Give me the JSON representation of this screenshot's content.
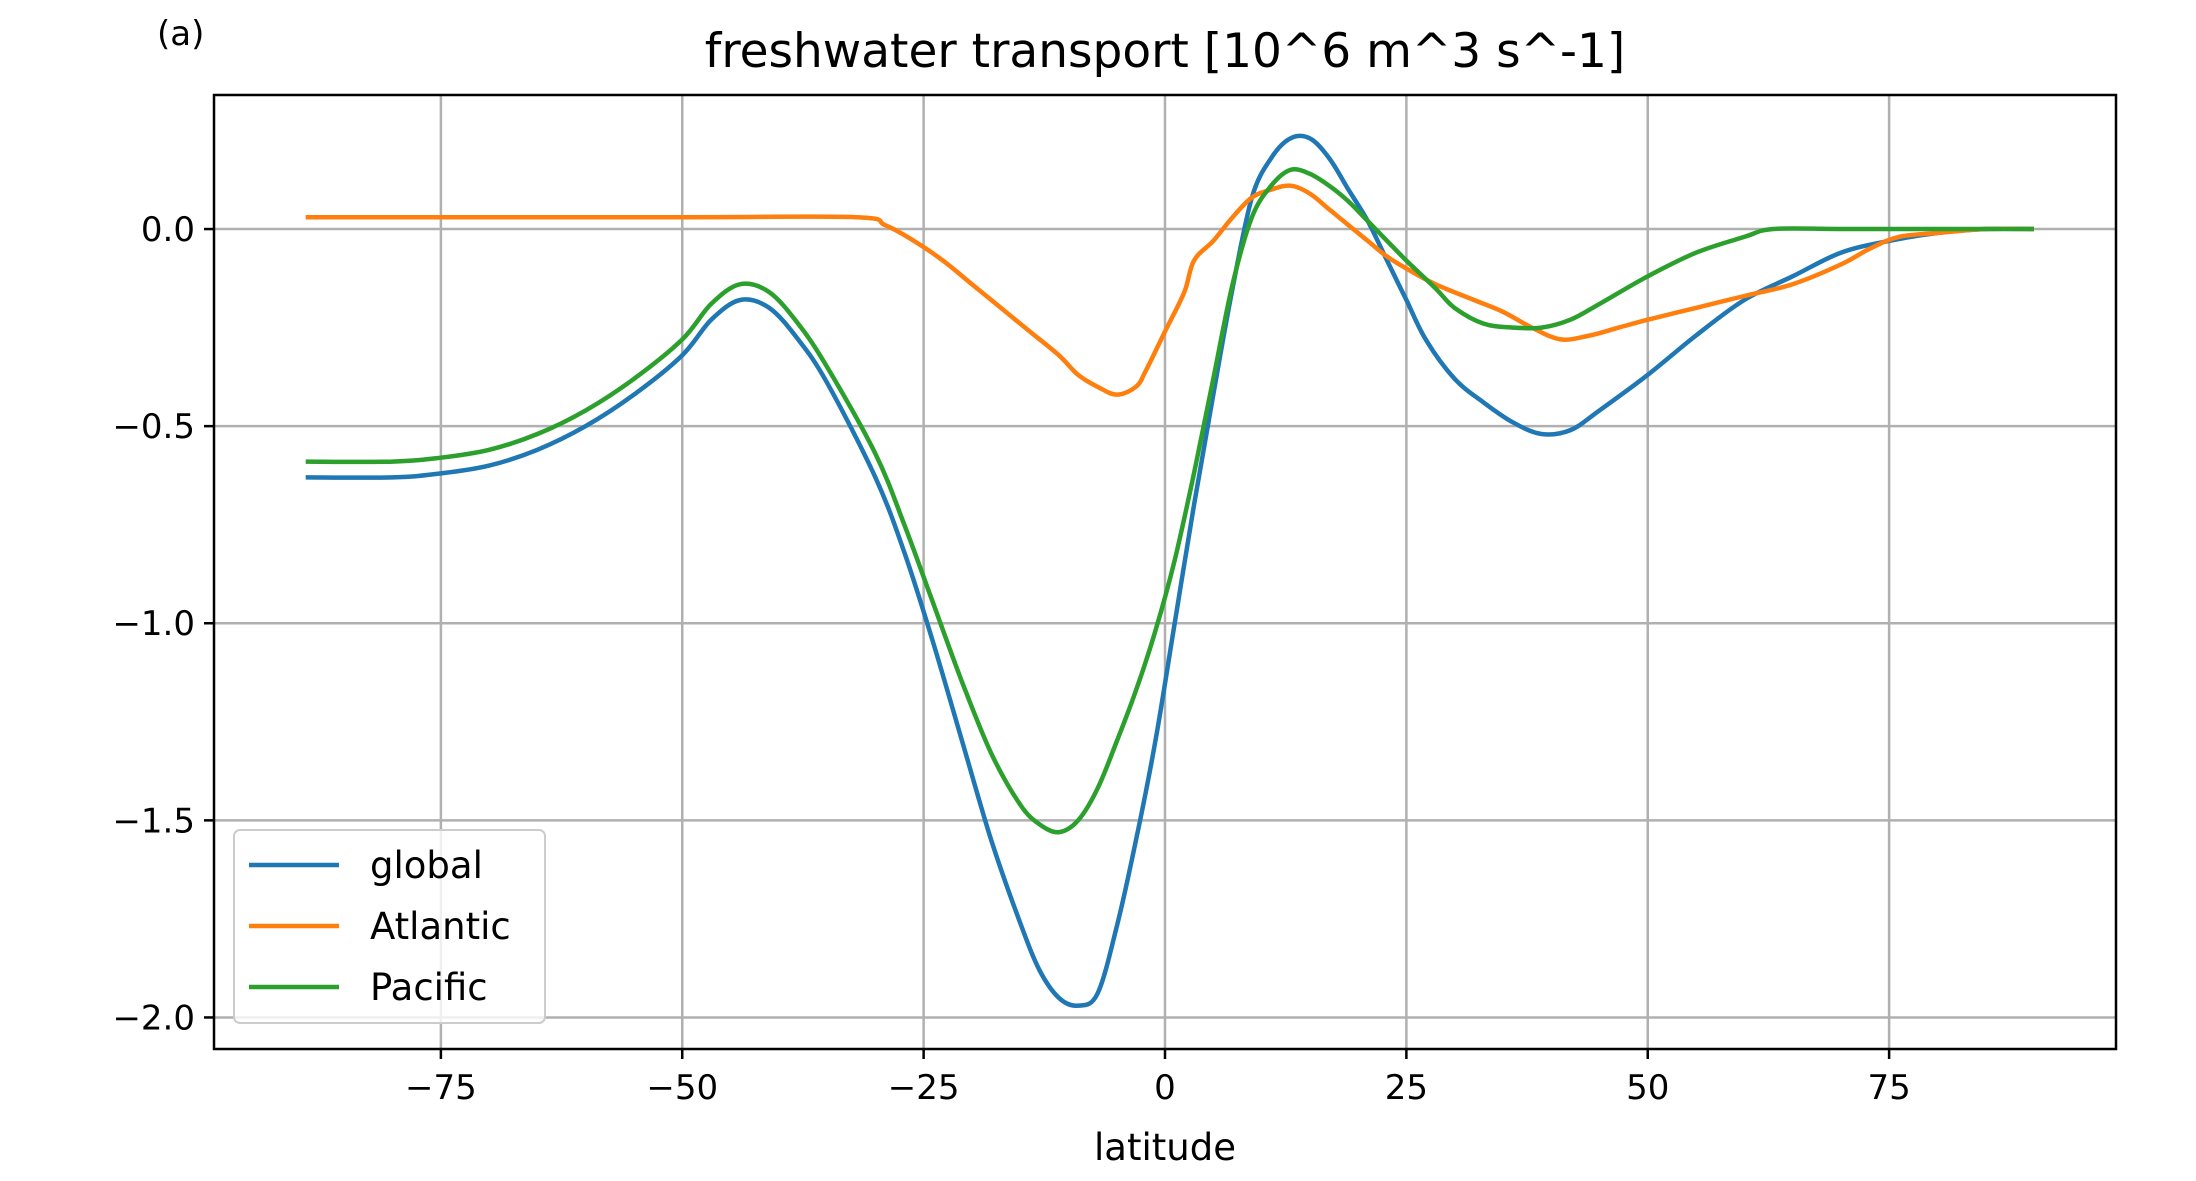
{
  "figure": {
    "panel_label": "(a)"
  },
  "chart_data": {
    "type": "line",
    "title": "freshwater transport [10^6 m^3 s^-1]",
    "xlabel": "latitude",
    "ylabel": "",
    "xlim": [
      -98.5,
      98.5
    ],
    "ylim": [
      -2.08,
      0.34
    ],
    "xticks": [
      -75,
      -50,
      -25,
      0,
      25,
      50,
      75
    ],
    "xtick_labels": [
      "−75",
      "−50",
      "−25",
      "0",
      "25",
      "50",
      "75"
    ],
    "yticks": [
      0.0,
      -0.5,
      -1.0,
      -1.5,
      -2.0
    ],
    "ytick_labels": [
      "0.0",
      "−0.5",
      "−1.0",
      "−1.5",
      "−2.0"
    ],
    "grid": true,
    "legend_position": "lower-left",
    "series": [
      {
        "name": "global",
        "color": "#1f77b4",
        "points": [
          [
            -89,
            -0.63
          ],
          [
            -80,
            -0.63
          ],
          [
            -75,
            -0.62
          ],
          [
            -70,
            -0.6
          ],
          [
            -65,
            -0.56
          ],
          [
            -60,
            -0.5
          ],
          [
            -55,
            -0.42
          ],
          [
            -50,
            -0.32
          ],
          [
            -47,
            -0.23
          ],
          [
            -44,
            -0.18
          ],
          [
            -41,
            -0.2
          ],
          [
            -38,
            -0.28
          ],
          [
            -35,
            -0.39
          ],
          [
            -30,
            -0.63
          ],
          [
            -27,
            -0.82
          ],
          [
            -24,
            -1.05
          ],
          [
            -21,
            -1.3
          ],
          [
            -18,
            -1.55
          ],
          [
            -15,
            -1.76
          ],
          [
            -13,
            -1.88
          ],
          [
            -11,
            -1.95
          ],
          [
            -9,
            -1.97
          ],
          [
            -7,
            -1.94
          ],
          [
            -5,
            -1.77
          ],
          [
            -3,
            -1.55
          ],
          [
            -1,
            -1.3
          ],
          [
            1,
            -1.0
          ],
          [
            3,
            -0.7
          ],
          [
            5,
            -0.42
          ],
          [
            7,
            -0.15
          ],
          [
            9,
            0.08
          ],
          [
            11,
            0.18
          ],
          [
            13,
            0.23
          ],
          [
            15,
            0.23
          ],
          [
            17,
            0.18
          ],
          [
            19,
            0.1
          ],
          [
            21,
            0.02
          ],
          [
            23,
            -0.08
          ],
          [
            25,
            -0.18
          ],
          [
            27,
            -0.28
          ],
          [
            30,
            -0.38
          ],
          [
            33,
            -0.44
          ],
          [
            36,
            -0.49
          ],
          [
            39,
            -0.52
          ],
          [
            42,
            -0.51
          ],
          [
            45,
            -0.46
          ],
          [
            50,
            -0.37
          ],
          [
            55,
            -0.27
          ],
          [
            60,
            -0.18
          ],
          [
            65,
            -0.12
          ],
          [
            70,
            -0.06
          ],
          [
            75,
            -0.03
          ],
          [
            80,
            -0.01
          ],
          [
            85,
            0.0
          ],
          [
            90,
            0.0
          ]
        ]
      },
      {
        "name": "Atlantic",
        "color": "#ff7f0e",
        "points": [
          [
            -89,
            0.03
          ],
          [
            -80,
            0.03
          ],
          [
            -50,
            0.03
          ],
          [
            -32,
            0.03
          ],
          [
            -29,
            0.01
          ],
          [
            -26,
            -0.03
          ],
          [
            -23,
            -0.08
          ],
          [
            -20,
            -0.14
          ],
          [
            -17,
            -0.2
          ],
          [
            -14,
            -0.26
          ],
          [
            -11,
            -0.32
          ],
          [
            -9,
            -0.37
          ],
          [
            -7,
            -0.4
          ],
          [
            -5,
            -0.42
          ],
          [
            -3,
            -0.4
          ],
          [
            -2,
            -0.36
          ],
          [
            0,
            -0.26
          ],
          [
            2,
            -0.16
          ],
          [
            3,
            -0.08
          ],
          [
            5,
            -0.03
          ],
          [
            7,
            0.03
          ],
          [
            9,
            0.08
          ],
          [
            11,
            0.1
          ],
          [
            13,
            0.11
          ],
          [
            15,
            0.09
          ],
          [
            17,
            0.05
          ],
          [
            19,
            0.01
          ],
          [
            21,
            -0.03
          ],
          [
            23,
            -0.07
          ],
          [
            25,
            -0.1
          ],
          [
            28,
            -0.14
          ],
          [
            32,
            -0.18
          ],
          [
            35,
            -0.21
          ],
          [
            38,
            -0.25
          ],
          [
            41,
            -0.28
          ],
          [
            44,
            -0.27
          ],
          [
            47,
            -0.25
          ],
          [
            50,
            -0.23
          ],
          [
            55,
            -0.2
          ],
          [
            60,
            -0.17
          ],
          [
            65,
            -0.14
          ],
          [
            70,
            -0.09
          ],
          [
            73,
            -0.05
          ],
          [
            76,
            -0.02
          ],
          [
            80,
            -0.01
          ],
          [
            85,
            0.0
          ],
          [
            90,
            0.0
          ]
        ]
      },
      {
        "name": "Pacific",
        "color": "#2ca02c",
        "points": [
          [
            -89,
            -0.59
          ],
          [
            -80,
            -0.59
          ],
          [
            -75,
            -0.58
          ],
          [
            -70,
            -0.56
          ],
          [
            -65,
            -0.52
          ],
          [
            -60,
            -0.46
          ],
          [
            -55,
            -0.38
          ],
          [
            -50,
            -0.28
          ],
          [
            -47,
            -0.19
          ],
          [
            -44,
            -0.14
          ],
          [
            -41,
            -0.16
          ],
          [
            -38,
            -0.24
          ],
          [
            -35,
            -0.35
          ],
          [
            -30,
            -0.57
          ],
          [
            -27,
            -0.75
          ],
          [
            -24,
            -0.95
          ],
          [
            -21,
            -1.15
          ],
          [
            -18,
            -1.33
          ],
          [
            -15,
            -1.46
          ],
          [
            -13,
            -1.51
          ],
          [
            -11,
            -1.53
          ],
          [
            -9,
            -1.5
          ],
          [
            -7,
            -1.42
          ],
          [
            -5,
            -1.3
          ],
          [
            -3,
            -1.17
          ],
          [
            -1,
            -1.02
          ],
          [
            1,
            -0.84
          ],
          [
            3,
            -0.62
          ],
          [
            5,
            -0.38
          ],
          [
            7,
            -0.14
          ],
          [
            9,
            0.03
          ],
          [
            11,
            0.11
          ],
          [
            13,
            0.15
          ],
          [
            15,
            0.14
          ],
          [
            17,
            0.11
          ],
          [
            19,
            0.07
          ],
          [
            21,
            0.02
          ],
          [
            23,
            -0.03
          ],
          [
            25,
            -0.08
          ],
          [
            28,
            -0.15
          ],
          [
            30,
            -0.2
          ],
          [
            33,
            -0.24
          ],
          [
            36,
            -0.25
          ],
          [
            39,
            -0.25
          ],
          [
            42,
            -0.23
          ],
          [
            45,
            -0.19
          ],
          [
            50,
            -0.12
          ],
          [
            55,
            -0.06
          ],
          [
            60,
            -0.02
          ],
          [
            63,
            0.0
          ],
          [
            70,
            0.0
          ],
          [
            80,
            0.0
          ],
          [
            90,
            0.0
          ]
        ]
      }
    ]
  }
}
